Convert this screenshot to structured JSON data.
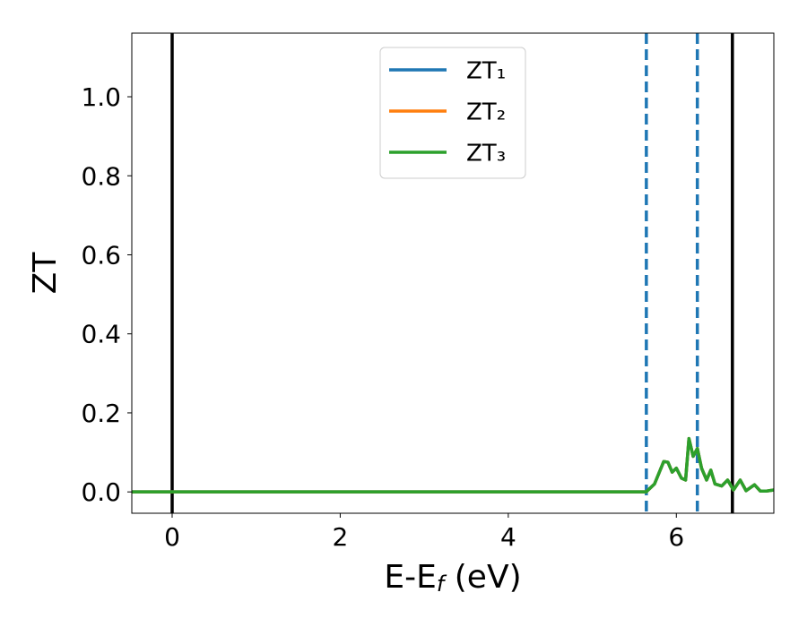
{
  "chart_data": {
    "type": "line",
    "x_label_parts": [
      "E-E",
      "f",
      " (eV)"
    ],
    "y_label": "ZT",
    "x": [
      -0.48,
      5.64,
      5.74,
      5.85,
      5.9,
      5.95,
      6.0,
      6.06,
      6.11,
      6.15,
      6.2,
      6.25,
      6.3,
      6.36,
      6.41,
      6.46,
      6.54,
      6.61,
      6.68,
      6.76,
      6.83,
      6.93,
      7.0,
      7.07,
      7.16
    ],
    "series": [
      {
        "name": "ZT₁",
        "color": "#1f77b4",
        "values": [
          0,
          0,
          0.02,
          0.077,
          0.075,
          0.05,
          0.06,
          0.035,
          0.03,
          0.135,
          0.09,
          0.11,
          0.06,
          0.03,
          0.055,
          0.02,
          0.015,
          0.03,
          0.005,
          0.03,
          0.003,
          0.018,
          0.002,
          0.002,
          0.005
        ]
      },
      {
        "name": "ZT₂",
        "color": "#ff7f0e",
        "values": [
          0,
          0,
          0.02,
          0.077,
          0.075,
          0.05,
          0.06,
          0.035,
          0.03,
          0.135,
          0.09,
          0.11,
          0.06,
          0.03,
          0.055,
          0.02,
          0.015,
          0.03,
          0.005,
          0.03,
          0.003,
          0.018,
          0.002,
          0.002,
          0.005
        ]
      },
      {
        "name": "ZT₃",
        "color": "#2ca02c",
        "values": [
          0,
          0,
          0.02,
          0.077,
          0.075,
          0.05,
          0.06,
          0.035,
          0.03,
          0.135,
          0.09,
          0.11,
          0.06,
          0.03,
          0.055,
          0.02,
          0.015,
          0.03,
          0.005,
          0.03,
          0.003,
          0.018,
          0.002,
          0.002,
          0.005
        ]
      }
    ],
    "vlines": [
      {
        "x": 0,
        "color": "#000000",
        "style": "solid"
      },
      {
        "x": 6.667,
        "color": "#000000",
        "style": "solid"
      },
      {
        "x": 5.643,
        "color": "#1f77b4",
        "style": "dashed"
      },
      {
        "x": 6.25,
        "color": "#1f77b4",
        "style": "dashed"
      }
    ],
    "xlim": [
      -0.48,
      7.16
    ],
    "ylim": [
      -0.054,
      1.161
    ],
    "xticks": [
      0,
      2,
      4,
      6
    ],
    "yticks": [
      {
        "value": 0,
        "label": "0.0"
      },
      {
        "value": 0.2,
        "label": "0.2"
      },
      {
        "value": 0.4,
        "label": "0.4"
      },
      {
        "value": 0.6,
        "label": "0.6"
      },
      {
        "value": 0.8,
        "label": "0.8"
      },
      {
        "value": 1.0,
        "label": "1.0"
      }
    ],
    "legend": "upper center",
    "grid": false
  }
}
